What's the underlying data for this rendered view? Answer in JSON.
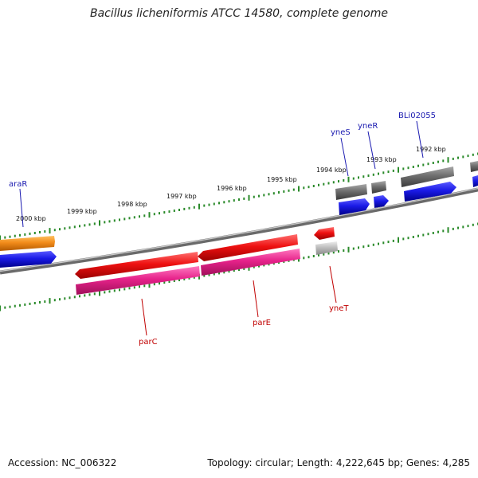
{
  "title": "Bacillus licheniformis ATCC 14580, complete genome",
  "accession": "Accession: NC_006322",
  "stats": "Topology: circular; Length: 4,222,645 bp; Genes: 4,285",
  "colors": {
    "backbone": "#7a7a7a",
    "tick": "#2a8a2a",
    "orange": "#f28c1a",
    "blue": "#1a1ae6",
    "red": "#ee1111",
    "magenta": "#e6228a",
    "gray": "#6e6e6e",
    "lightgray": "#bdbdbd",
    "label_blue": "#1a1ab0",
    "label_red": "#c00000"
  },
  "kbp_labels": [
    "2000 kbp",
    "1999 kbp",
    "1998 kbp",
    "1997 kbp",
    "1996 kbp",
    "1995 kbp",
    "1994 kbp",
    "1993 kbp",
    "1992 kbp"
  ],
  "gene_labels": {
    "araR": "araR",
    "yneS": "yneS",
    "yneR": "yneR",
    "BLi02055": "BLi02055",
    "parC": "parC",
    "parE": "parE",
    "yneT": "yneT"
  }
}
